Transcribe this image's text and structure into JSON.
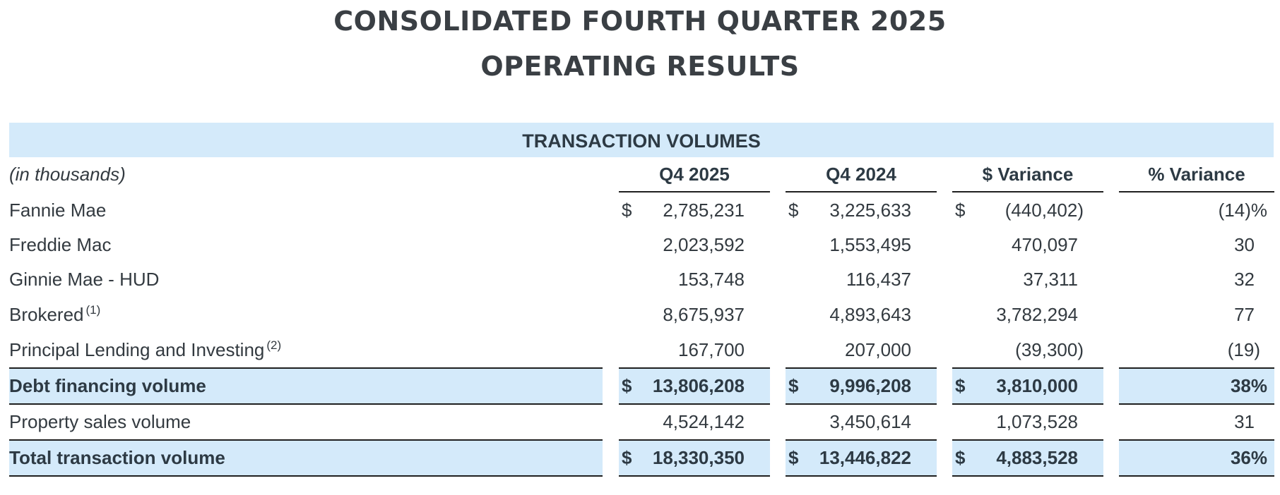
{
  "title_line1": "CONSOLIDATED FOURTH QUARTER 2025",
  "title_line2": "OPERATING RESULTS",
  "section_title": "TRANSACTION VOLUMES",
  "units_label": "(in thousands)",
  "columns": [
    "Q4 2025",
    "Q4 2024",
    "$ Variance",
    "% Variance"
  ],
  "currency_symbol": "$",
  "rows": [
    {
      "label": "Fannie Mae",
      "sup": "",
      "q4_2025": "2,785,231",
      "q4_2024": "3,225,633",
      "dollar_var": "(440,402)",
      "pct_var": "(14)%"
    },
    {
      "label": "Freddie Mac",
      "sup": "",
      "q4_2025": "2,023,592",
      "q4_2024": "1,553,495",
      "dollar_var": "470,097",
      "pct_var": "30"
    },
    {
      "label": "Ginnie Mae - HUD",
      "sup": "",
      "q4_2025": "153,748",
      "q4_2024": "116,437",
      "dollar_var": "37,311",
      "pct_var": "32"
    },
    {
      "label": "Brokered",
      "sup": "(1)",
      "q4_2025": "8,675,937",
      "q4_2024": "4,893,643",
      "dollar_var": "3,782,294",
      "pct_var": "77"
    },
    {
      "label": "Principal Lending and Investing",
      "sup": "(2)",
      "q4_2025": "167,700",
      "q4_2024": "207,000",
      "dollar_var": "(39,300)",
      "pct_var": "(19)"
    }
  ],
  "debt_total": {
    "label": "Debt financing volume",
    "q4_2025": "13,806,208",
    "q4_2024": "9,996,208",
    "dollar_var": "3,810,000",
    "pct_var": "38%"
  },
  "property_sales": {
    "label": "Property sales volume",
    "q4_2025": "4,524,142",
    "q4_2024": "3,450,614",
    "dollar_var": "1,073,528",
    "pct_var": "31"
  },
  "grand_total": {
    "label": "Total transaction volume",
    "q4_2025": "18,330,350",
    "q4_2024": "13,446,822",
    "dollar_var": "4,883,528",
    "pct_var": "36%"
  },
  "colors": {
    "band": "#d4eafa",
    "text": "#333a40",
    "rule": "#1f1f1f"
  }
}
